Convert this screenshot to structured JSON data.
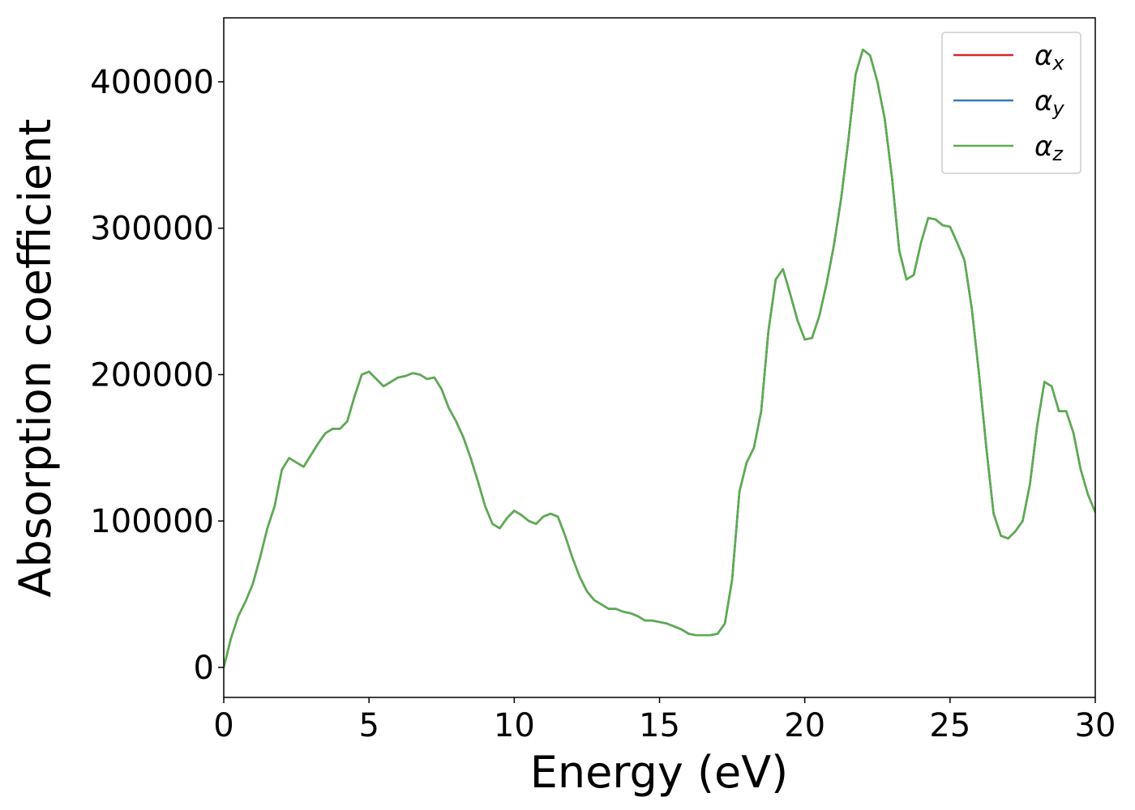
{
  "chart_data": {
    "type": "line",
    "xlabel": "Energy (eV)",
    "ylabel": "Absorption coefficient",
    "xlim": [
      0,
      30
    ],
    "xticks": [
      0,
      5,
      10,
      15,
      20,
      25,
      30
    ],
    "ylim": [
      -20500,
      443700
    ],
    "yticks": [
      0,
      100000,
      200000,
      300000,
      400000
    ],
    "legend": "upper right",
    "grid": false,
    "x": [
      0,
      0.25,
      0.5,
      0.75,
      1,
      1.25,
      1.5,
      1.75,
      2,
      2.25,
      2.5,
      2.75,
      3,
      3.25,
      3.5,
      3.75,
      4,
      4.25,
      4.5,
      4.75,
      5,
      5.25,
      5.5,
      5.75,
      6,
      6.25,
      6.5,
      6.75,
      7,
      7.25,
      7.5,
      7.75,
      8,
      8.25,
      8.5,
      8.75,
      9,
      9.25,
      9.5,
      9.75,
      10,
      10.25,
      10.5,
      10.75,
      11,
      11.25,
      11.5,
      11.75,
      12,
      12.25,
      12.5,
      12.75,
      13,
      13.25,
      13.5,
      13.75,
      14,
      14.25,
      14.5,
      14.75,
      15,
      15.25,
      15.5,
      15.75,
      16,
      16.25,
      16.5,
      16.75,
      17,
      17.25,
      17.5,
      17.75,
      18,
      18.25,
      18.5,
      18.75,
      19,
      19.25,
      19.5,
      19.75,
      20,
      20.25,
      20.5,
      20.75,
      21,
      21.25,
      21.5,
      21.75,
      22,
      22.25,
      22.5,
      22.75,
      23,
      23.25,
      23.5,
      23.75,
      24,
      24.25,
      24.5,
      24.75,
      25,
      25.25,
      25.5,
      25.75,
      26,
      26.25,
      26.5,
      26.75,
      27,
      27.25,
      27.5,
      27.75,
      28,
      28.25,
      28.5,
      28.75,
      29,
      29.25,
      29.5,
      29.75,
      30
    ],
    "series": [
      {
        "name": "αx",
        "color": "#d62728",
        "values": [
          0,
          20000,
          35000,
          45000,
          57000,
          75000,
          95000,
          110000,
          135000,
          143000,
          140000,
          137000,
          145000,
          153000,
          160000,
          163000,
          163000,
          168000,
          185000,
          200000,
          202000,
          197000,
          192000,
          195000,
          198000,
          199000,
          201000,
          200000,
          197000,
          198000,
          190000,
          177000,
          168000,
          157000,
          143000,
          127000,
          110000,
          98000,
          95000,
          102000,
          107000,
          104000,
          100000,
          98000,
          103000,
          105000,
          103000,
          90000,
          75000,
          62000,
          52000,
          46000,
          43000,
          40000,
          40000,
          38000,
          37000,
          35000,
          32000,
          32000,
          31000,
          30000,
          28000,
          26000,
          23000,
          22000,
          22000,
          22000,
          23000,
          30000,
          60000,
          120000,
          140000,
          150000,
          175000,
          230000,
          265000,
          272000,
          255000,
          237000,
          224000,
          225000,
          240000,
          262000,
          288000,
          320000,
          360000,
          405000,
          422000,
          418000,
          400000,
          375000,
          335000,
          285000,
          265000,
          268000,
          290000,
          307000,
          306000,
          302000,
          301000,
          290000,
          278000,
          245000,
          200000,
          150000,
          105000,
          90000,
          88000,
          93000,
          100000,
          125000,
          165000,
          195000,
          192000,
          175000,
          175000,
          160000,
          135000,
          118000,
          106000
        ]
      },
      {
        "name": "αy",
        "color": "#3a78b0",
        "values": [
          0,
          20000,
          35000,
          45000,
          57000,
          75000,
          95000,
          110000,
          135000,
          143000,
          140000,
          137000,
          145000,
          153000,
          160000,
          163000,
          163000,
          168000,
          185000,
          200000,
          202000,
          197000,
          192000,
          195000,
          198000,
          199000,
          201000,
          200000,
          197000,
          198000,
          190000,
          177000,
          168000,
          157000,
          143000,
          127000,
          110000,
          98000,
          95000,
          102000,
          107000,
          104000,
          100000,
          98000,
          103000,
          105000,
          103000,
          90000,
          75000,
          62000,
          52000,
          46000,
          43000,
          40000,
          40000,
          38000,
          37000,
          35000,
          32000,
          32000,
          31000,
          30000,
          28000,
          26000,
          23000,
          22000,
          22000,
          22000,
          23000,
          30000,
          60000,
          120000,
          140000,
          150000,
          175000,
          230000,
          265000,
          272000,
          255000,
          237000,
          224000,
          225000,
          240000,
          262000,
          288000,
          320000,
          360000,
          405000,
          422000,
          418000,
          400000,
          375000,
          335000,
          285000,
          265000,
          268000,
          290000,
          307000,
          306000,
          302000,
          301000,
          290000,
          278000,
          245000,
          200000,
          150000,
          105000,
          90000,
          88000,
          93000,
          100000,
          125000,
          165000,
          195000,
          192000,
          175000,
          175000,
          160000,
          135000,
          118000,
          106000
        ]
      },
      {
        "name": "αz",
        "color": "#5aad4e",
        "values": [
          0,
          20000,
          35000,
          45000,
          57000,
          75000,
          95000,
          110000,
          135000,
          143000,
          140000,
          137000,
          145000,
          153000,
          160000,
          163000,
          163000,
          168000,
          185000,
          200000,
          202000,
          197000,
          192000,
          195000,
          198000,
          199000,
          201000,
          200000,
          197000,
          198000,
          190000,
          177000,
          168000,
          157000,
          143000,
          127000,
          110000,
          98000,
          95000,
          102000,
          107000,
          104000,
          100000,
          98000,
          103000,
          105000,
          103000,
          90000,
          75000,
          62000,
          52000,
          46000,
          43000,
          40000,
          40000,
          38000,
          37000,
          35000,
          32000,
          32000,
          31000,
          30000,
          28000,
          26000,
          23000,
          22000,
          22000,
          22000,
          23000,
          30000,
          60000,
          120000,
          140000,
          150000,
          175000,
          230000,
          265000,
          272000,
          255000,
          237000,
          224000,
          225000,
          240000,
          262000,
          288000,
          320000,
          360000,
          405000,
          422000,
          418000,
          400000,
          375000,
          335000,
          285000,
          265000,
          268000,
          290000,
          307000,
          306000,
          302000,
          301000,
          290000,
          278000,
          245000,
          200000,
          150000,
          105000,
          90000,
          88000,
          93000,
          100000,
          125000,
          165000,
          195000,
          192000,
          175000,
          175000,
          160000,
          135000,
          118000,
          106000
        ]
      }
    ]
  }
}
